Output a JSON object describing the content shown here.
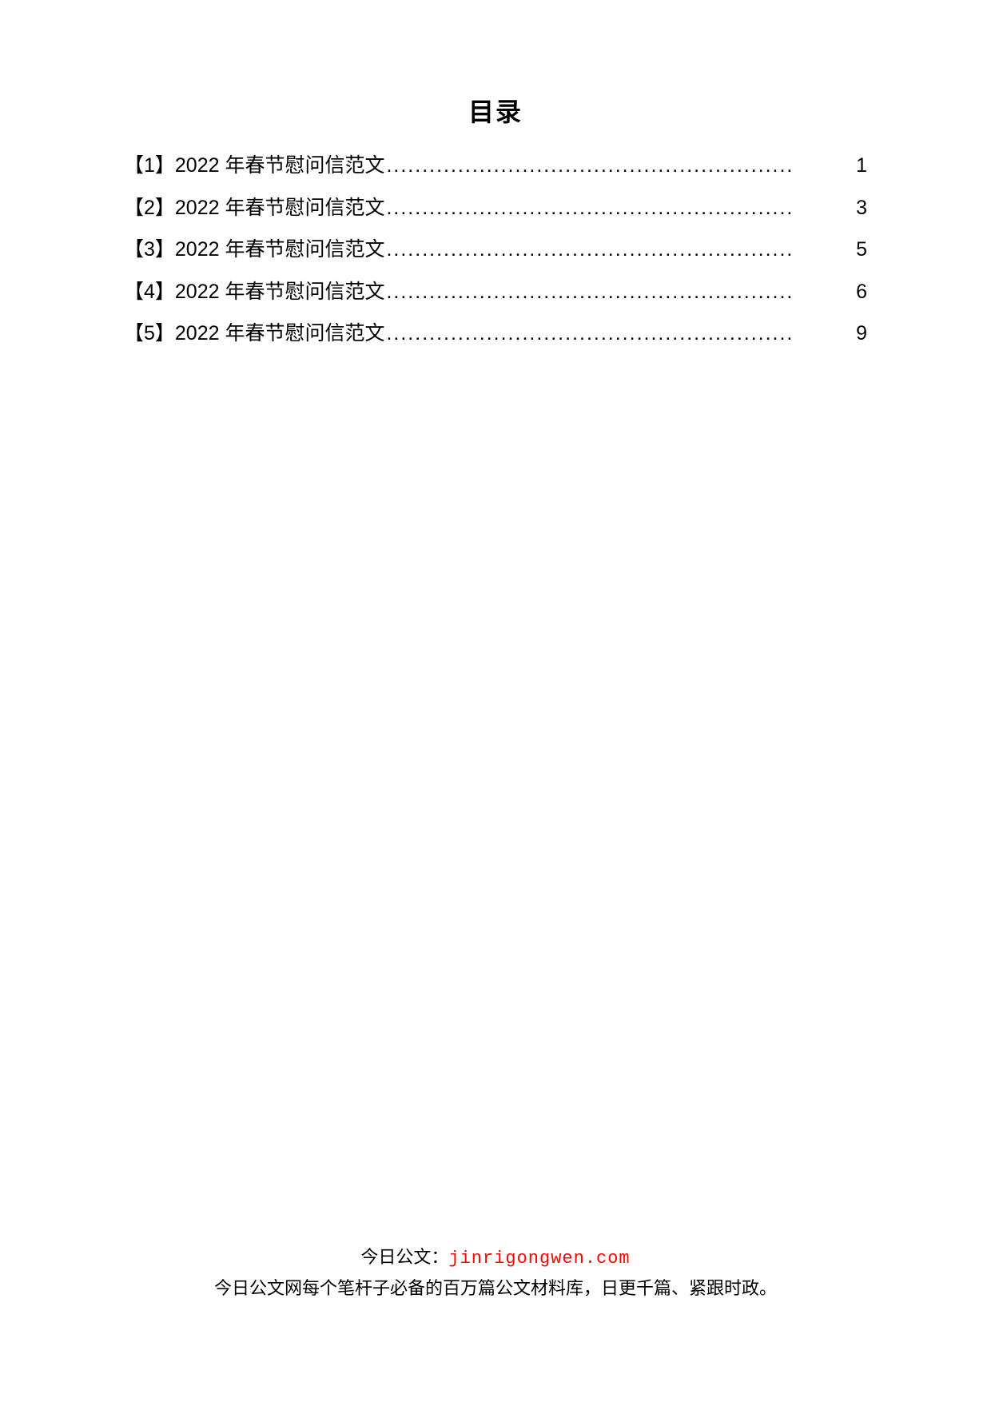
{
  "title": "目录",
  "toc": {
    "items": [
      {
        "label": "【1】2022 年春节慰问信范文",
        "page": "1"
      },
      {
        "label": "【2】2022 年春节慰问信范文",
        "page": "3"
      },
      {
        "label": "【3】2022 年春节慰问信范文",
        "page": "5"
      },
      {
        "label": "【4】2022 年春节慰问信范文",
        "page": "6"
      },
      {
        "label": "【5】2022 年春节慰问信范文",
        "page": "9"
      }
    ],
    "leader": "........................................................."
  },
  "footer": {
    "prefix": "今日公文：",
    "url": "jinrigongwen.com",
    "line2": "今日公文网每个笔杆子必备的百万篇公文材料库，日更千篇、紧跟时政。"
  }
}
